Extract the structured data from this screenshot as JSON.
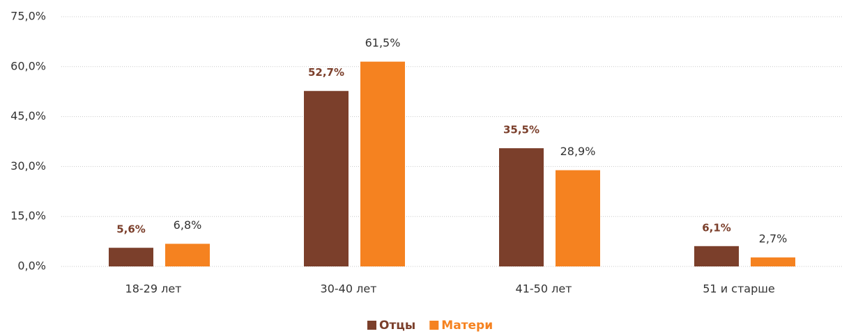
{
  "chart_data": {
    "type": "bar",
    "categories": [
      "18-29 лет",
      "30-40 лет",
      "41-50 лет",
      "51 и старше"
    ],
    "series": [
      {
        "name": "Отцы",
        "color": "#7b3f2b",
        "values": [
          5.6,
          52.7,
          35.5,
          6.1
        ],
        "value_labels": [
          "5,6%",
          "52,7%",
          "35,5%",
          "6,1%"
        ]
      },
      {
        "name": "Матери",
        "color": "#f58220",
        "values": [
          6.8,
          61.5,
          28.9,
          2.7
        ],
        "value_labels": [
          "6,8%",
          "61,5%",
          "28,9%",
          "2,7%"
        ]
      }
    ],
    "ylim": [
      0,
      75
    ],
    "yticks": [
      {
        "value": 0,
        "label": "0,0%"
      },
      {
        "value": 15,
        "label": "15,0%"
      },
      {
        "value": 30,
        "label": "30,0%"
      },
      {
        "value": 45,
        "label": "45,0%"
      },
      {
        "value": 60,
        "label": "60,0%"
      },
      {
        "value": 75,
        "label": "75,0%"
      }
    ],
    "grid": true,
    "legend": "bottom"
  }
}
